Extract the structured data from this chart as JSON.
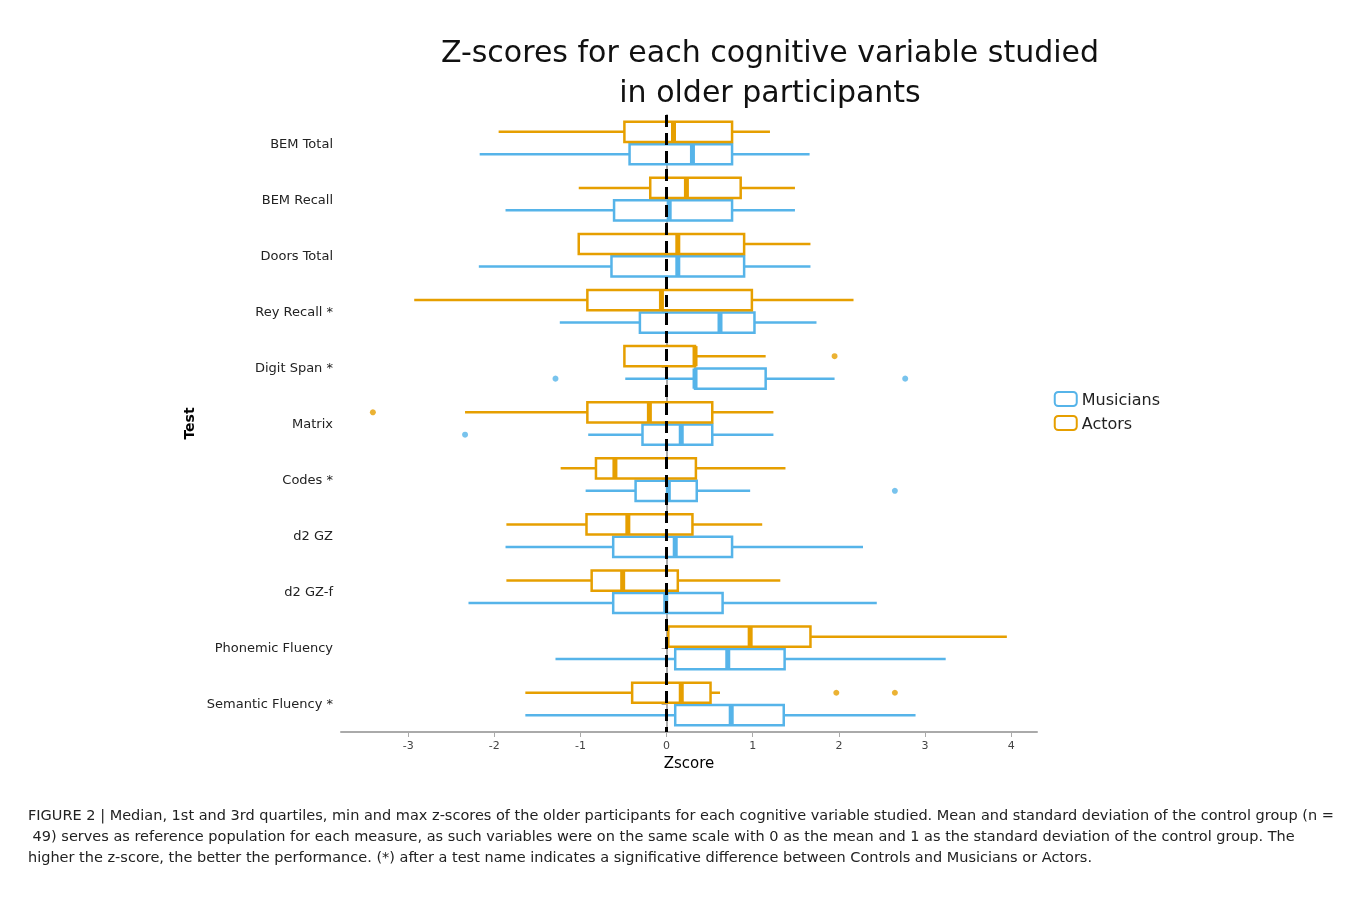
{
  "chart_data": {
    "type": "box",
    "orientation": "horizontal",
    "title": "Z-scores for each cognitive variable studied\nin older participants",
    "xlabel": "Zscore",
    "ylabel": "Test",
    "categories": [
      "BEM Total",
      "BEM Recall",
      "Doors Total",
      "Rey Recall *",
      "Digit Span *",
      "Matrix",
      "Codes *",
      "d2 GZ",
      "d2 GZ-f",
      "Phonemic Fluency",
      "Semantic Fluency *"
    ],
    "xlim": [
      -3.78,
      4.3
    ],
    "xticks": [
      -3,
      -2,
      -1,
      0,
      1,
      2,
      3,
      4
    ],
    "grid": false,
    "legend": "right",
    "ref_lines": [
      {
        "axis": "x",
        "value": 0,
        "color": "#000000",
        "line_style": "dashed"
      }
    ],
    "series": [
      {
        "name": "Musicians",
        "color": "#56b4e9",
        "boxes": [
          {
            "low": -2.17,
            "q1": -0.43,
            "median": 0.3,
            "q3": 0.76,
            "high": 1.66
          },
          {
            "low": -1.87,
            "q1": -0.61,
            "median": 0.03,
            "q3": 0.76,
            "high": 1.49
          },
          {
            "low": -2.18,
            "q1": -0.64,
            "median": 0.13,
            "q3": 0.9,
            "high": 1.67
          },
          {
            "low": -1.24,
            "q1": -0.31,
            "median": 0.62,
            "q3": 1.02,
            "high": 1.74
          },
          {
            "low": -0.48,
            "q1": 0.33,
            "median": 0.33,
            "q3": 1.15,
            "high": 1.95,
            "outliers": [
              -1.29,
              2.77
            ]
          },
          {
            "low": -0.91,
            "q1": -0.28,
            "median": 0.17,
            "q3": 0.53,
            "high": 1.24,
            "outliers": [
              -2.34
            ]
          },
          {
            "low": -0.94,
            "q1": -0.36,
            "median": 0.02,
            "q3": 0.35,
            "high": 0.97,
            "outliers": [
              2.65
            ]
          },
          {
            "low": -1.87,
            "q1": -0.62,
            "median": 0.1,
            "q3": 0.76,
            "high": 2.28
          },
          {
            "low": -2.3,
            "q1": -0.62,
            "median": -0.01,
            "q3": 0.65,
            "high": 2.44
          },
          {
            "low": -1.29,
            "q1": 0.1,
            "median": 0.71,
            "q3": 1.37,
            "high": 3.24
          },
          {
            "low": -1.64,
            "q1": 0.1,
            "median": 0.75,
            "q3": 1.36,
            "high": 2.89
          }
        ]
      },
      {
        "name": "Actors",
        "color": "#e69f00",
        "boxes": [
          {
            "low": -1.95,
            "q1": -0.49,
            "median": 0.08,
            "q3": 0.76,
            "high": 1.2
          },
          {
            "low": -1.02,
            "q1": -0.19,
            "median": 0.23,
            "q3": 0.86,
            "high": 1.49
          },
          {
            "low": -1.02,
            "q1": -1.02,
            "median": 0.13,
            "q3": 0.9,
            "high": 1.67
          },
          {
            "low": -2.93,
            "q1": -0.92,
            "median": -0.06,
            "q3": 0.99,
            "high": 2.17
          },
          {
            "low": -0.49,
            "q1": -0.49,
            "median": 0.33,
            "q3": 0.33,
            "high": 1.15,
            "outliers": [
              1.95
            ]
          },
          {
            "low": -2.34,
            "q1": -0.92,
            "median": -0.2,
            "q3": 0.53,
            "high": 1.24,
            "outliers": [
              -3.41
            ]
          },
          {
            "low": -1.23,
            "q1": -0.82,
            "median": -0.6,
            "q3": 0.34,
            "high": 1.38
          },
          {
            "low": -1.86,
            "q1": -0.93,
            "median": -0.45,
            "q3": 0.3,
            "high": 1.11
          },
          {
            "low": -1.86,
            "q1": -0.87,
            "median": -0.51,
            "q3": 0.13,
            "high": 1.32
          },
          {
            "low": 0.02,
            "q1": 0.02,
            "median": 0.97,
            "q3": 1.67,
            "high": 3.95
          },
          {
            "low": -1.64,
            "q1": -0.4,
            "median": 0.17,
            "q3": 0.51,
            "high": 0.62,
            "outliers": [
              1.97,
              2.65
            ]
          }
        ]
      }
    ],
    "annotations": [
      "FIGURE 2 | Median, 1st and 3rd quartiles, min and max z-scores of the older participants for each cognitive variable studied. Mean and standard deviation of the control group (n = 49) serves as reference population for each measure, as such variables were on the same scale with 0 as the mean and 1 as the standard deviation of the control group. The higher the z-score, the better the performance. (*) after a test name indicates a significative difference between Controls and Musicians or Actors."
    ]
  }
}
